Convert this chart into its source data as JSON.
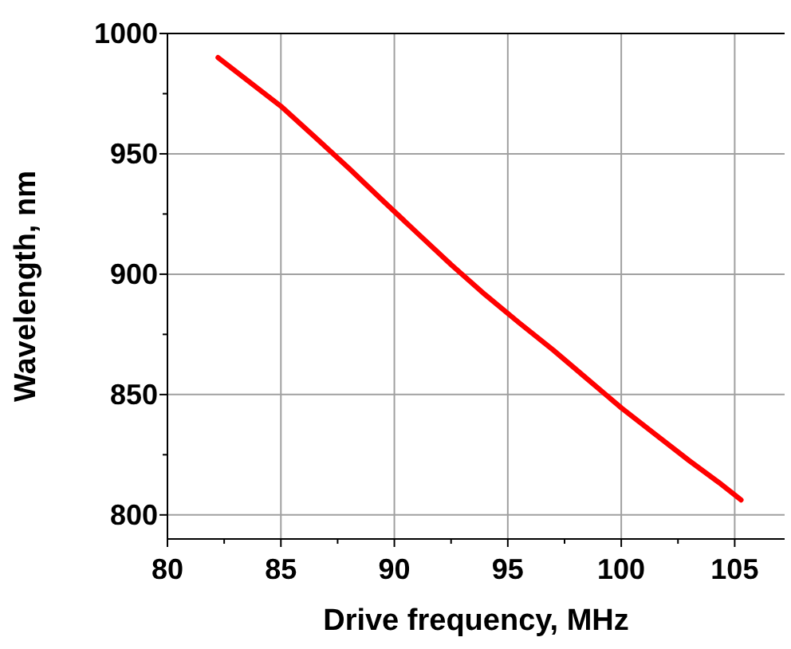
{
  "chart_data": {
    "type": "line",
    "xlabel": "Drive frequency, MHz",
    "ylabel": "Wavelength, nm",
    "x": [
      82.23,
      83.5,
      85,
      86.5,
      88,
      89.5,
      91,
      92.5,
      94,
      95.5,
      97,
      98.5,
      100,
      101.5,
      103,
      104.3,
      105.28
    ],
    "series": [
      {
        "color": "#ff0000",
        "values": [
          990,
          980.7,
          969.8,
          957,
          944,
          930.5,
          917.2,
          904,
          891.5,
          879.8,
          868.5,
          856.5,
          844.5,
          833.5,
          822.5,
          813.5,
          806.2
        ]
      }
    ],
    "xlim": [
      80,
      107.2
    ],
    "ylim": [
      790,
      1000
    ],
    "xticks": [
      80,
      {
        "value": 82.5,
        "label": null
      },
      85,
      {
        "value": 87.5,
        "label": null
      },
      90,
      {
        "value": 92.5,
        "label": null
      },
      95,
      {
        "value": 97.5,
        "label": null
      },
      100,
      {
        "value": 102.5,
        "label": null
      },
      105
    ],
    "yticks": [
      800,
      {
        "value": 825,
        "label": null
      },
      850,
      {
        "value": 875,
        "label": null
      },
      900,
      {
        "value": 925,
        "label": null
      },
      950,
      {
        "value": 975,
        "label": null
      },
      1000
    ],
    "grid": true,
    "line_style": "solid",
    "marker": "none"
  }
}
